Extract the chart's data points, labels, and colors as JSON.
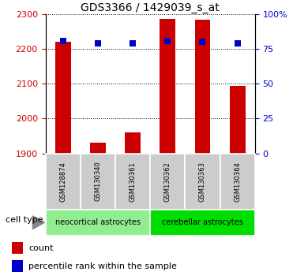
{
  "title": "GDS3366 / 1429039_s_at",
  "samples": [
    "GSM128874",
    "GSM130340",
    "GSM130361",
    "GSM130362",
    "GSM130363",
    "GSM130364"
  ],
  "red_values": [
    2220,
    1930,
    1960,
    2285,
    2283,
    2093
  ],
  "blue_values": [
    2222,
    2215,
    2215,
    2222,
    2220,
    2215
  ],
  "ylim_left": [
    1900,
    2300
  ],
  "ylim_right": [
    0,
    100
  ],
  "yticks_left": [
    1900,
    2000,
    2100,
    2200,
    2300
  ],
  "yticks_right": [
    0,
    25,
    50,
    75,
    100
  ],
  "ytick_right_labels": [
    "0",
    "25",
    "50",
    "75",
    "100%"
  ],
  "groups": [
    {
      "label": "neocortical astrocytes",
      "start": 0,
      "end": 3,
      "color": "#90ee90"
    },
    {
      "label": "cerebellar astrocytes",
      "start": 3,
      "end": 6,
      "color": "#00dd00"
    }
  ],
  "cell_type_label": "cell type",
  "legend_red": "count",
  "legend_blue": "percentile rank within the sample",
  "red_color": "#cc0000",
  "blue_color": "#0000cc",
  "bar_width": 0.45,
  "dot_size": 28,
  "left_label_color": "#cc0000",
  "right_label_color": "#0000cc",
  "grid_color": "black",
  "tick_area_color": "#cccccc",
  "fig_width": 3.71,
  "fig_height": 3.54,
  "dpi": 100
}
